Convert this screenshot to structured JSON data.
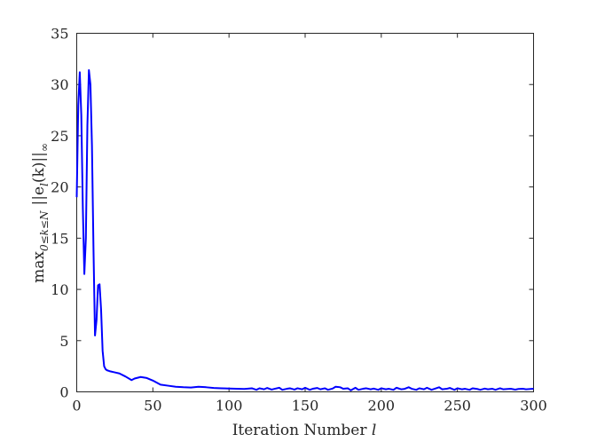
{
  "chart_data": {
    "type": "line",
    "title": "",
    "xlabel": "Iteration Number",
    "xlabel_var": "l",
    "ylabel_main": "max",
    "ylabel_sub": "0≤k≤N",
    "ylabel_expr": "||e",
    "ylabel_expr_sub": "l",
    "ylabel_expr_tail": "(k)||",
    "ylabel_tail_sub": "∞",
    "xlim": [
      0,
      300
    ],
    "ylim": [
      0,
      35
    ],
    "xticks": [
      "0",
      "50",
      "100",
      "150",
      "200",
      "250",
      "300"
    ],
    "yticks": [
      "0",
      "5",
      "10",
      "15",
      "20",
      "25",
      "30",
      "35"
    ],
    "grid": false,
    "legend": "none",
    "series": [
      {
        "color": "#0000ff",
        "x": [
          0,
          1,
          2,
          3,
          4,
          5,
          6,
          7,
          8,
          9,
          10,
          11,
          12,
          13,
          14,
          15,
          16,
          17,
          18,
          19,
          20,
          21,
          22,
          25,
          28,
          32,
          36,
          38,
          42,
          46,
          50,
          55,
          60,
          65,
          70,
          75,
          80,
          85,
          90,
          95,
          100,
          105,
          110,
          115,
          118,
          120,
          123,
          125,
          128,
          130,
          133,
          135,
          138,
          140,
          143,
          145,
          148,
          150,
          153,
          155,
          158,
          160,
          163,
          165,
          168,
          170,
          173,
          175,
          178,
          180,
          183,
          185,
          188,
          190,
          193,
          195,
          198,
          200,
          203,
          205,
          208,
          210,
          213,
          215,
          218,
          220,
          223,
          225,
          228,
          230,
          233,
          235,
          238,
          240,
          243,
          245,
          248,
          250,
          253,
          255,
          258,
          260,
          263,
          265,
          268,
          270,
          273,
          275,
          278,
          280,
          283,
          285,
          288,
          290,
          293,
          295,
          298,
          300
        ],
        "y": [
          19,
          28,
          31.2,
          27,
          18,
          11.5,
          15,
          26,
          31.4,
          30,
          24,
          14,
          5.5,
          7,
          10.4,
          10.5,
          8,
          4,
          2.5,
          2.2,
          2.1,
          2.05,
          2.0,
          1.9,
          1.8,
          1.5,
          1.15,
          1.3,
          1.45,
          1.35,
          1.1,
          0.7,
          0.6,
          0.5,
          0.45,
          0.42,
          0.5,
          0.45,
          0.38,
          0.35,
          0.33,
          0.3,
          0.28,
          0.35,
          0.2,
          0.35,
          0.25,
          0.38,
          0.22,
          0.3,
          0.4,
          0.2,
          0.3,
          0.35,
          0.22,
          0.35,
          0.25,
          0.4,
          0.2,
          0.3,
          0.38,
          0.25,
          0.35,
          0.2,
          0.32,
          0.5,
          0.45,
          0.3,
          0.35,
          0.15,
          0.4,
          0.2,
          0.3,
          0.35,
          0.25,
          0.32,
          0.2,
          0.35,
          0.25,
          0.3,
          0.2,
          0.4,
          0.25,
          0.28,
          0.45,
          0.3,
          0.2,
          0.35,
          0.25,
          0.4,
          0.2,
          0.3,
          0.45,
          0.25,
          0.3,
          0.38,
          0.2,
          0.35,
          0.25,
          0.3,
          0.2,
          0.35,
          0.28,
          0.2,
          0.32,
          0.25,
          0.3,
          0.2,
          0.35,
          0.25,
          0.28,
          0.3,
          0.22,
          0.28,
          0.3,
          0.25,
          0.28,
          0.3
        ]
      }
    ]
  }
}
